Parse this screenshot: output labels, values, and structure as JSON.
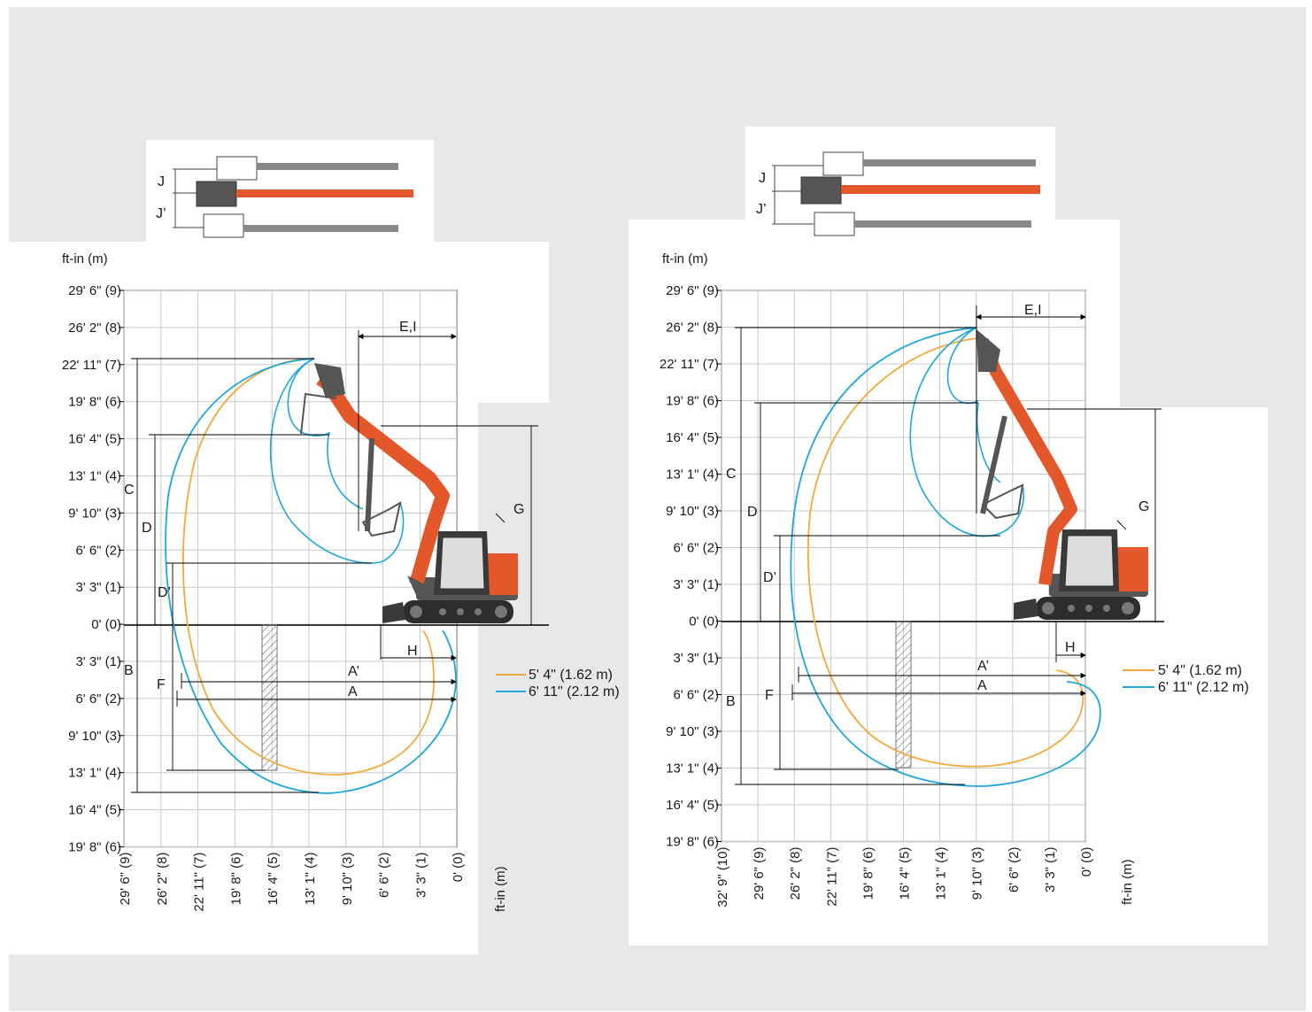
{
  "colors": {
    "panel_bg": "#e7e8e9",
    "grid": "#c9c9c9",
    "axis": "#000000",
    "arm_short": "#f4a93a",
    "arm_long": "#1ea7dc",
    "machine_orange": "#e4572a",
    "machine_dark": "#3a3a3a"
  },
  "left_diagram": {
    "unit_label_y": "ft-in (m)",
    "unit_label_x": "ft-in  (m)",
    "y_ticks": [
      "29' 6\" (9)",
      "26'  2\" (8)",
      "22' 11\" (7)",
      "19' 8\" (6)",
      "16' 4\" (5)",
      "13' 1\" (4)",
      "9' 10\" (3)",
      "6' 6\" (2)",
      "3' 3\" (1)",
      "0' (0)",
      "3' 3\" (1)",
      "6' 6\" (2)",
      "9' 10\" (3)",
      "13' 1\" (4)",
      "16' 4\" (5)",
      "19' 8\" (6)"
    ],
    "x_ticks": [
      "29' 6\" (9)",
      "26' 2\" (8)",
      "22' 11\" (7)",
      "19' 8\" (6)",
      "16' 4\" (5)",
      "13' 1\" (4)",
      "9' 10\" (3)",
      "6' 6\" (2)",
      "3' 3\" (1)",
      "0' (0)"
    ],
    "dimension_labels": {
      "A": "A",
      "A_prime": "A’",
      "B": "B",
      "C": "C",
      "D": "D",
      "D_prime": "D’",
      "E_I": "E,I",
      "F": "F",
      "G": "G",
      "H": "H",
      "J": "J",
      "J_prime": "J’"
    },
    "legend": [
      {
        "label": "5' 4\" (1.62 m)",
        "color": "#f4a93a"
      },
      {
        "label": "6' 11\" (2.12 m)",
        "color": "#1ea7dc"
      }
    ]
  },
  "right_diagram": {
    "unit_label_y": "ft-in (m)",
    "unit_label_x": "ft-in  (m)",
    "y_ticks": [
      "29' 6\" (9)",
      "26' 2\" (8)",
      "22' 11\" (7)",
      "19' 8\" (6)",
      "16' 4\" (5)",
      "13' 1\" (4)",
      "9' 10\" (3)",
      "6' 6\" (2)",
      "3' 3\" (1)",
      "0' (0)",
      "3' 3\" (1)",
      "6' 6\" (2)",
      "9' 10\" (3)",
      "13' 1\" (4)",
      "16' 4\" (5)",
      "19' 8\" (6)"
    ],
    "x_ticks": [
      "32' 9\" (10)",
      "29' 6\" (9)",
      "26' 2\" (8)",
      "22' 11\" (7)",
      "19' 8\" (6)",
      "16' 4\" (5)",
      "13' 1\" (4)",
      "9' 10\" (3)",
      "6' 6\" (2)",
      "3' 3\" (1)",
      "0' (0)"
    ],
    "dimension_labels": {
      "A": "A",
      "A_prime": "A’",
      "B": "B",
      "C": "C",
      "D": "D",
      "D_prime": "D’",
      "E_I": "E,I",
      "F": "F",
      "G": "G",
      "H": "H",
      "J": "J",
      "J_prime": "J’"
    },
    "legend": [
      {
        "label": "5' 4\" (1.62 m)",
        "color": "#f4a93a"
      },
      {
        "label": "6' 11\" (2.12 m)",
        "color": "#1ea7dc"
      }
    ]
  }
}
